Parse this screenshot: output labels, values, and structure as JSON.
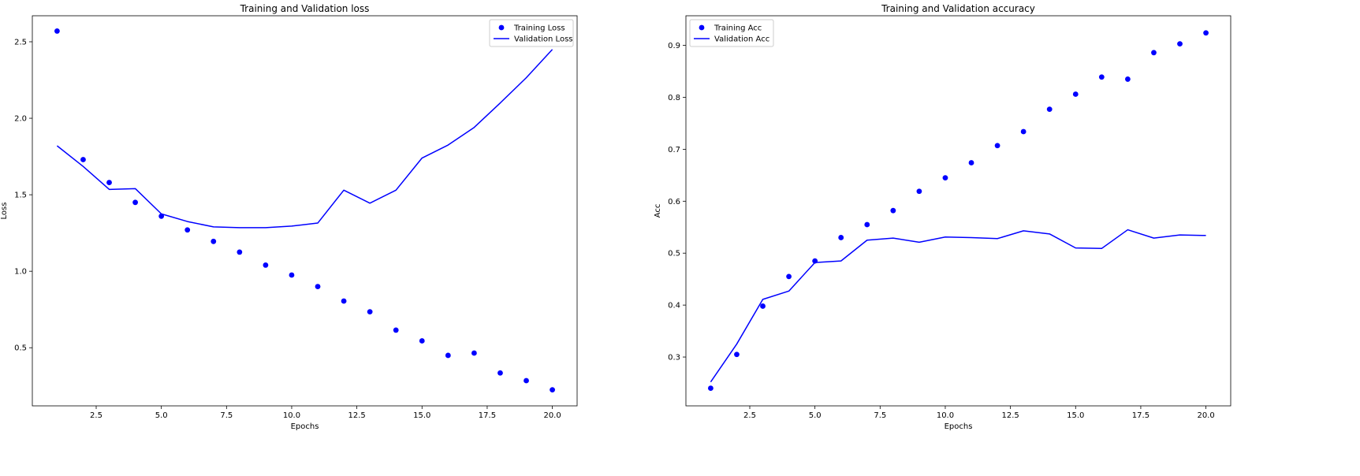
{
  "chart_data": [
    {
      "type": "line",
      "title": "Training and Validation loss",
      "xlabel": "Epochs",
      "ylabel": "Loss",
      "xlim": [
        0.05,
        20.95
      ],
      "ylim": [
        0.12,
        2.67
      ],
      "xticks": [
        2.5,
        5.0,
        7.5,
        10.0,
        12.5,
        15.0,
        17.5,
        20.0
      ],
      "xtick_labels": [
        "2.5",
        "5.0",
        "7.5",
        "10.0",
        "12.5",
        "15.0",
        "17.5",
        "20.0"
      ],
      "yticks": [
        0.5,
        1.0,
        1.5,
        2.0,
        2.5
      ],
      "ytick_labels": [
        "0.5",
        "1.0",
        "1.5",
        "2.0",
        "2.5"
      ],
      "grid": false,
      "legend_position": "top-right",
      "x": [
        1,
        2,
        3,
        4,
        5,
        6,
        7,
        8,
        9,
        10,
        11,
        12,
        13,
        14,
        15,
        16,
        17,
        18,
        19,
        20
      ],
      "series": [
        {
          "name": "Training Loss",
          "style": "points",
          "color": "#0000ff",
          "values": [
            2.57,
            1.73,
            1.58,
            1.45,
            1.36,
            1.27,
            1.195,
            1.125,
            1.04,
            0.975,
            0.9,
            0.805,
            0.735,
            0.615,
            0.545,
            0.45,
            0.465,
            0.335,
            0.285,
            0.225
          ]
        },
        {
          "name": "Validation Loss",
          "style": "line",
          "color": "#0000ff",
          "values": [
            1.82,
            1.685,
            1.535,
            1.54,
            1.375,
            1.325,
            1.29,
            1.285,
            1.285,
            1.295,
            1.315,
            1.53,
            1.445,
            1.53,
            1.74,
            1.825,
            1.94,
            2.1,
            2.265,
            2.45
          ]
        }
      ]
    },
    {
      "type": "line",
      "title": "Training and Validation accuracy",
      "xlabel": "Epochs",
      "ylabel": "Acc",
      "xlim": [
        0.05,
        20.95
      ],
      "ylim": [
        0.206,
        0.957
      ],
      "xticks": [
        2.5,
        5.0,
        7.5,
        10.0,
        12.5,
        15.0,
        17.5,
        20.0
      ],
      "xtick_labels": [
        "2.5",
        "5.0",
        "7.5",
        "10.0",
        "12.5",
        "15.0",
        "17.5",
        "20.0"
      ],
      "yticks": [
        0.3,
        0.4,
        0.5,
        0.6,
        0.7,
        0.8,
        0.9
      ],
      "ytick_labels": [
        "0.3",
        "0.4",
        "0.5",
        "0.6",
        "0.7",
        "0.8",
        "0.9"
      ],
      "grid": false,
      "legend_position": "top-left",
      "x": [
        1,
        2,
        3,
        4,
        5,
        6,
        7,
        8,
        9,
        10,
        11,
        12,
        13,
        14,
        15,
        16,
        17,
        18,
        19,
        20
      ],
      "series": [
        {
          "name": "Training Acc",
          "style": "points",
          "color": "#0000ff",
          "values": [
            0.24,
            0.305,
            0.398,
            0.455,
            0.485,
            0.53,
            0.555,
            0.582,
            0.619,
            0.645,
            0.674,
            0.707,
            0.734,
            0.777,
            0.806,
            0.839,
            0.835,
            0.886,
            0.903,
            0.924
          ]
        },
        {
          "name": "Validation Acc",
          "style": "line",
          "color": "#0000ff",
          "values": [
            0.252,
            0.325,
            0.411,
            0.427,
            0.482,
            0.485,
            0.525,
            0.529,
            0.521,
            0.531,
            0.53,
            0.528,
            0.543,
            0.537,
            0.51,
            0.509,
            0.545,
            0.529,
            0.535,
            0.534
          ]
        }
      ]
    }
  ]
}
